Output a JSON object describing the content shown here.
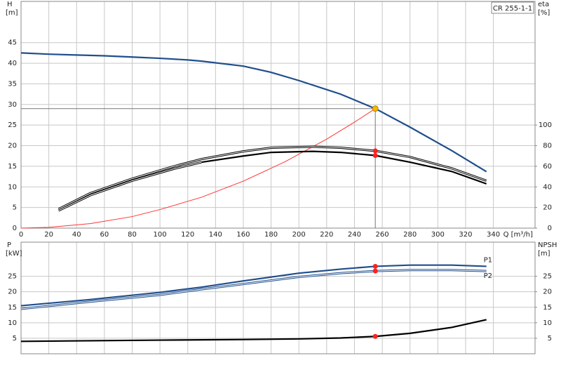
{
  "chart_data": [
    {
      "type": "line",
      "legend_text": "CR 255-1-1",
      "ylabel": "H",
      "yunit": "[m]",
      "y2label": "eta",
      "y2unit": "[%]",
      "xlabel": "Q [m³/h]",
      "xlim": [
        0,
        370
      ],
      "xticks": [
        0,
        20,
        40,
        60,
        80,
        100,
        120,
        140,
        160,
        180,
        200,
        220,
        240,
        260,
        280,
        300,
        320,
        340
      ],
      "ylim": [
        0,
        55
      ],
      "yticks": [
        0,
        5,
        10,
        15,
        20,
        25,
        30,
        35,
        40,
        45
      ],
      "y2lim": [
        0,
        220
      ],
      "y2ticks": [
        0,
        20,
        40,
        60,
        80,
        100
      ],
      "grid": true,
      "series": [
        {
          "color": "#1f4e8c",
          "style": "solid",
          "x": [
            0,
            20,
            40,
            60,
            80,
            100,
            120,
            130,
            160,
            180,
            200,
            230,
            255,
            280,
            310,
            335
          ],
          "values": [
            42.5,
            42.2,
            42.0,
            41.8,
            41.5,
            41.2,
            40.8,
            40.5,
            39.3,
            37.8,
            35.8,
            32.5,
            29,
            24.5,
            18.8,
            13.7
          ]
        },
        {
          "color": "#ff3333",
          "style": "thin",
          "x": [
            0,
            20,
            50,
            80,
            100,
            130,
            160,
            190,
            220,
            240,
            255
          ],
          "values": [
            0,
            0.2,
            1.1,
            2.8,
            4.5,
            7.5,
            11.4,
            16.1,
            21.6,
            25.7,
            29
          ]
        },
        {
          "color": "#000000",
          "style": "double",
          "axis": "y2",
          "x": [
            27,
            50,
            80,
            110,
            130,
            160,
            180,
            210,
            230,
            255,
            280,
            310,
            335
          ],
          "values": [
            18.5,
            34,
            48,
            60,
            67,
            74.5,
            78,
            79,
            78,
            75,
            69,
            58,
            46
          ]
        },
        {
          "color": "#000000",
          "style": "double",
          "axis": "y2",
          "x": [
            27,
            50,
            80,
            110,
            130
          ],
          "values": [
            17,
            32,
            46,
            57.5,
            64
          ]
        },
        {
          "color": "#000000",
          "style": "solid",
          "axis": "y2",
          "x": [
            130,
            160,
            180,
            210,
            230,
            255,
            280,
            310,
            335
          ],
          "values": [
            64,
            70,
            73.5,
            74.5,
            73.5,
            70.5,
            64,
            55,
            43
          ]
        }
      ],
      "duty_point": {
        "x": 255,
        "y": 29,
        "color": "#f5b800"
      },
      "points": [
        {
          "x": 255,
          "y": 75,
          "axis": "y2",
          "color": "#ff2020"
        },
        {
          "x": 255,
          "y": 70.5,
          "axis": "y2",
          "color": "#ff2020"
        }
      ]
    },
    {
      "type": "line",
      "ylabel": "P",
      "yunit": "[kW]",
      "y2label": "NPSH",
      "y2unit": "[m]",
      "xlim": [
        0,
        370
      ],
      "xticks": [
        0,
        20,
        40,
        60,
        80,
        100,
        120,
        140,
        160,
        180,
        200,
        220,
        240,
        260,
        280,
        300,
        320,
        340
      ],
      "ylim": [
        0,
        36
      ],
      "yticks": [
        5,
        10,
        15,
        20,
        25
      ],
      "y2lim": [
        0,
        36
      ],
      "y2ticks": [
        5,
        10,
        15,
        20,
        25
      ],
      "grid": true,
      "series": [
        {
          "name": "P1",
          "color": "#1f4e8c",
          "style": "solid",
          "x": [
            0,
            50,
            100,
            130,
            160,
            200,
            230,
            255,
            280,
            310,
            335
          ],
          "values": [
            15.5,
            17.5,
            19.8,
            21.5,
            23.5,
            26,
            27.3,
            28.2,
            28.6,
            28.6,
            28.2
          ]
        },
        {
          "name": "P2",
          "color": "#1f4e8c",
          "style": "double",
          "x": [
            0,
            50,
            100,
            130,
            160,
            200,
            230,
            255,
            280,
            310,
            335
          ],
          "values": [
            14.5,
            16.8,
            19,
            20.8,
            22.5,
            24.8,
            26,
            26.7,
            27,
            27,
            26.7
          ]
        },
        {
          "color": "#000000",
          "style": "solid",
          "axis": "y2",
          "x": [
            0,
            50,
            100,
            130,
            160,
            200,
            230,
            255,
            280,
            310,
            335
          ],
          "values": [
            4,
            4.2,
            4.4,
            4.5,
            4.6,
            4.8,
            5.1,
            5.6,
            6.6,
            8.5,
            11
          ]
        }
      ],
      "points": [
        {
          "x": 255,
          "y": 28.2,
          "color": "#ff2020"
        },
        {
          "x": 255,
          "y": 26.7,
          "color": "#ff2020"
        },
        {
          "x": 255,
          "y": 5.6,
          "axis": "y2",
          "color": "#ff2020"
        }
      ]
    }
  ]
}
